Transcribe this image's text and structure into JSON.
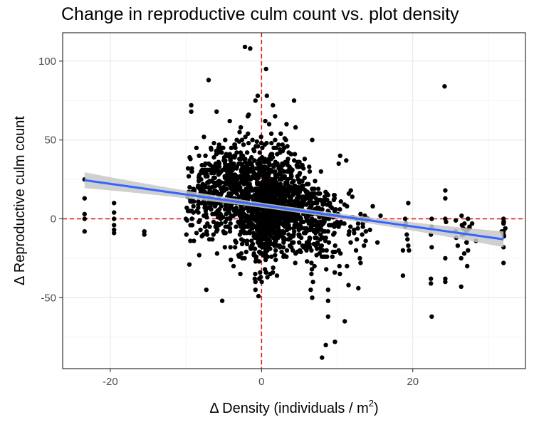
{
  "chart_data": {
    "type": "scatter",
    "title": "Change in reproductive culm count vs. plot density",
    "xlabel_prefix": "Δ Density (individuals /  m",
    "xlabel_sup": "2",
    "xlabel_suffix": ")",
    "ylabel": "Δ Reproductive culm count",
    "xlim": [
      -26.3,
      34.9
    ],
    "ylim": [
      -95,
      118
    ],
    "x_ticks": [
      -20,
      0,
      20
    ],
    "y_ticks": [
      -50,
      0,
      50,
      100
    ],
    "x_tick_labels": [
      "-20",
      "0",
      "20"
    ],
    "y_tick_labels": [
      "-50",
      "0",
      "50",
      "100"
    ],
    "grid": true,
    "reference_lines": {
      "x": 0,
      "y": 0,
      "color": "#e41a1c",
      "style": "dashed"
    },
    "trend": {
      "method": "linear fit with confidence band",
      "x": [
        -23.4,
        32
      ],
      "y": [
        24.5,
        -13
      ],
      "ci_halfwidth_ends": [
        5,
        5
      ],
      "color": "#3366ff",
      "band_color": "#c8c8c8"
    },
    "points": [
      [
        -23.4,
        25
      ],
      [
        -23.4,
        13
      ],
      [
        -23.4,
        3
      ],
      [
        -23.4,
        0
      ],
      [
        -23.4,
        -8
      ],
      [
        -19.5,
        10
      ],
      [
        -19.5,
        4
      ],
      [
        -19.5,
        0
      ],
      [
        -19.5,
        -4
      ],
      [
        -19.5,
        -7
      ],
      [
        -19.5,
        -9
      ],
      [
        -15.5,
        -8
      ],
      [
        -15.5,
        -10
      ],
      [
        -10,
        0
      ],
      [
        -9.3,
        72
      ],
      [
        -9.3,
        68
      ],
      [
        -9.5,
        39
      ],
      [
        -9.2,
        30
      ],
      [
        -9.5,
        20
      ],
      [
        -9.3,
        12
      ],
      [
        -9.5,
        5
      ],
      [
        -9.2,
        0
      ],
      [
        -9.4,
        -4
      ],
      [
        -7,
        88
      ],
      [
        -7,
        35
      ],
      [
        -7.4,
        20
      ],
      [
        -7.2,
        -10
      ],
      [
        -7.3,
        -45
      ],
      [
        -5.7,
        45
      ],
      [
        -5.7,
        30
      ],
      [
        -5.4,
        0
      ],
      [
        -5.2,
        -52
      ],
      [
        -4.8,
        50
      ],
      [
        -4.2,
        62
      ],
      [
        -4,
        45
      ],
      [
        -3.8,
        25
      ],
      [
        -3.5,
        -18
      ],
      [
        -3.7,
        -30
      ],
      [
        -2.9,
        55
      ],
      [
        -2.6,
        40
      ],
      [
        -2.3,
        30
      ],
      [
        -2.8,
        -35
      ],
      [
        -2.2,
        109
      ],
      [
        -1.5,
        108
      ],
      [
        -1.7,
        66
      ],
      [
        -1.8,
        30
      ],
      [
        -0.8,
        75
      ],
      [
        -0.5,
        78
      ],
      [
        -1.2,
        50
      ],
      [
        -1,
        -22
      ],
      [
        -0.8,
        -40
      ],
      [
        -0.8,
        -45
      ],
      [
        -0.4,
        -49
      ],
      [
        -0.3,
        -38
      ],
      [
        0.6,
        95
      ],
      [
        0.7,
        78
      ],
      [
        0.5,
        62
      ],
      [
        1,
        60
      ],
      [
        1.2,
        40
      ],
      [
        1.5,
        72
      ],
      [
        1.8,
        65
      ],
      [
        1.8,
        50
      ],
      [
        2.5,
        33
      ],
      [
        2.3,
        20
      ],
      [
        3,
        45
      ],
      [
        3.3,
        60
      ],
      [
        3.5,
        38
      ],
      [
        3.6,
        42
      ],
      [
        4.3,
        75
      ],
      [
        4.5,
        58
      ],
      [
        4.8,
        36
      ],
      [
        5,
        28
      ],
      [
        5.5,
        21
      ],
      [
        5.8,
        18
      ],
      [
        6.2,
        22
      ],
      [
        6.7,
        50
      ],
      [
        7.5,
        16
      ],
      [
        7.5,
        19
      ],
      [
        7.8,
        12
      ],
      [
        8.3,
        12
      ],
      [
        8.8,
        15
      ],
      [
        10.4,
        40
      ],
      [
        10.2,
        35
      ],
      [
        10.5,
        11
      ],
      [
        10.5,
        -2
      ],
      [
        11.2,
        37
      ],
      [
        11.3,
        8
      ],
      [
        12,
        14
      ],
      [
        11.8,
        18
      ],
      [
        12.5,
        0
      ],
      [
        12.6,
        -13
      ],
      [
        8.3,
        0
      ],
      [
        8.2,
        -8
      ],
      [
        8.6,
        -20
      ],
      [
        8.8,
        -45
      ],
      [
        8.8,
        -52
      ],
      [
        8.8,
        -62
      ],
      [
        8.5,
        -80
      ],
      [
        8,
        -88
      ],
      [
        9.7,
        -78
      ],
      [
        6.6,
        -20
      ],
      [
        6.6,
        -28
      ],
      [
        6.6,
        -35
      ],
      [
        6.8,
        -40
      ],
      [
        6.5,
        -45
      ],
      [
        6.7,
        -50
      ],
      [
        7,
        -30
      ],
      [
        7.4,
        -2
      ],
      [
        7.4,
        -8
      ],
      [
        7.8,
        -5
      ],
      [
        7.8,
        -10
      ],
      [
        7.4,
        -15
      ],
      [
        10.2,
        -20
      ],
      [
        10.3,
        -30
      ],
      [
        11.3,
        -30
      ],
      [
        11.5,
        -42
      ],
      [
        11,
        -65
      ],
      [
        12.8,
        -44
      ],
      [
        13.3,
        0
      ],
      [
        13.4,
        -5
      ],
      [
        13.3,
        -10
      ],
      [
        12.5,
        -20
      ],
      [
        13,
        -25
      ],
      [
        18.7,
        -36
      ],
      [
        18.7,
        -20
      ],
      [
        19,
        -5
      ],
      [
        19,
        0
      ],
      [
        19.4,
        10
      ],
      [
        19.1,
        -3
      ],
      [
        19.2,
        -10
      ],
      [
        19.3,
        -13
      ],
      [
        19.4,
        -17
      ],
      [
        19.5,
        -20
      ],
      [
        22.5,
        -62
      ],
      [
        22.4,
        -41
      ],
      [
        22.4,
        -38
      ],
      [
        22.5,
        -18
      ],
      [
        22.4,
        -10
      ],
      [
        22.5,
        0
      ],
      [
        22.5,
        -5
      ],
      [
        24.2,
        84
      ],
      [
        24.3,
        18
      ],
      [
        24.3,
        13
      ],
      [
        24.3,
        0
      ],
      [
        24.4,
        -2
      ],
      [
        24.3,
        -25
      ],
      [
        24.3,
        -38
      ],
      [
        24.3,
        -40
      ],
      [
        26.4,
        -43
      ],
      [
        26.4,
        -25
      ],
      [
        26.8,
        -22
      ],
      [
        26.5,
        -10
      ],
      [
        26.5,
        -4
      ],
      [
        27.3,
        0
      ],
      [
        27.5,
        -5
      ],
      [
        27.1,
        -15
      ],
      [
        27.3,
        -20
      ],
      [
        27.2,
        -30
      ],
      [
        32,
        -28
      ],
      [
        32,
        -18
      ],
      [
        32,
        -8
      ],
      [
        32,
        -3
      ],
      [
        32,
        -2
      ],
      [
        32,
        0
      ]
    ],
    "clusters": [
      {
        "cx": -1,
        "cy": 12,
        "sx": 4.0,
        "sy": 14,
        "n": 620
      },
      {
        "cx": 2.5,
        "cy": 6,
        "sx": 3.0,
        "sy": 13,
        "n": 380
      },
      {
        "cx": 0.3,
        "cy": 2,
        "sx": 0.5,
        "sy": 18,
        "n": 200
      },
      {
        "cx": 5.5,
        "cy": 0,
        "sx": 2.5,
        "sy": 10,
        "n": 120
      },
      {
        "cx": 8.5,
        "cy": -6,
        "sx": 1.0,
        "sy": 12,
        "n": 60
      },
      {
        "cx": -6,
        "cy": 20,
        "sx": 2.0,
        "sy": 13,
        "n": 120
      },
      {
        "cx": -3,
        "cy": 30,
        "sx": 2.2,
        "sy": 12,
        "n": 80
      },
      {
        "cx": -8.2,
        "cy": 12,
        "sx": 1.4,
        "sy": 11,
        "n": 40
      },
      {
        "cx": 0.7,
        "cy": -10,
        "sx": 2.0,
        "sy": 9,
        "n": 100
      },
      {
        "cx": 2,
        "cy": 35,
        "sx": 1.8,
        "sy": 9,
        "n": 60
      },
      {
        "cx": 13,
        "cy": -4,
        "sx": 1.3,
        "sy": 7,
        "n": 25
      },
      {
        "cx": 27,
        "cy": -7,
        "sx": 0.8,
        "sy": 6,
        "n": 15
      },
      {
        "cx": 32,
        "cy": -7,
        "sx": 0.15,
        "sy": 6,
        "n": 6
      }
    ]
  }
}
